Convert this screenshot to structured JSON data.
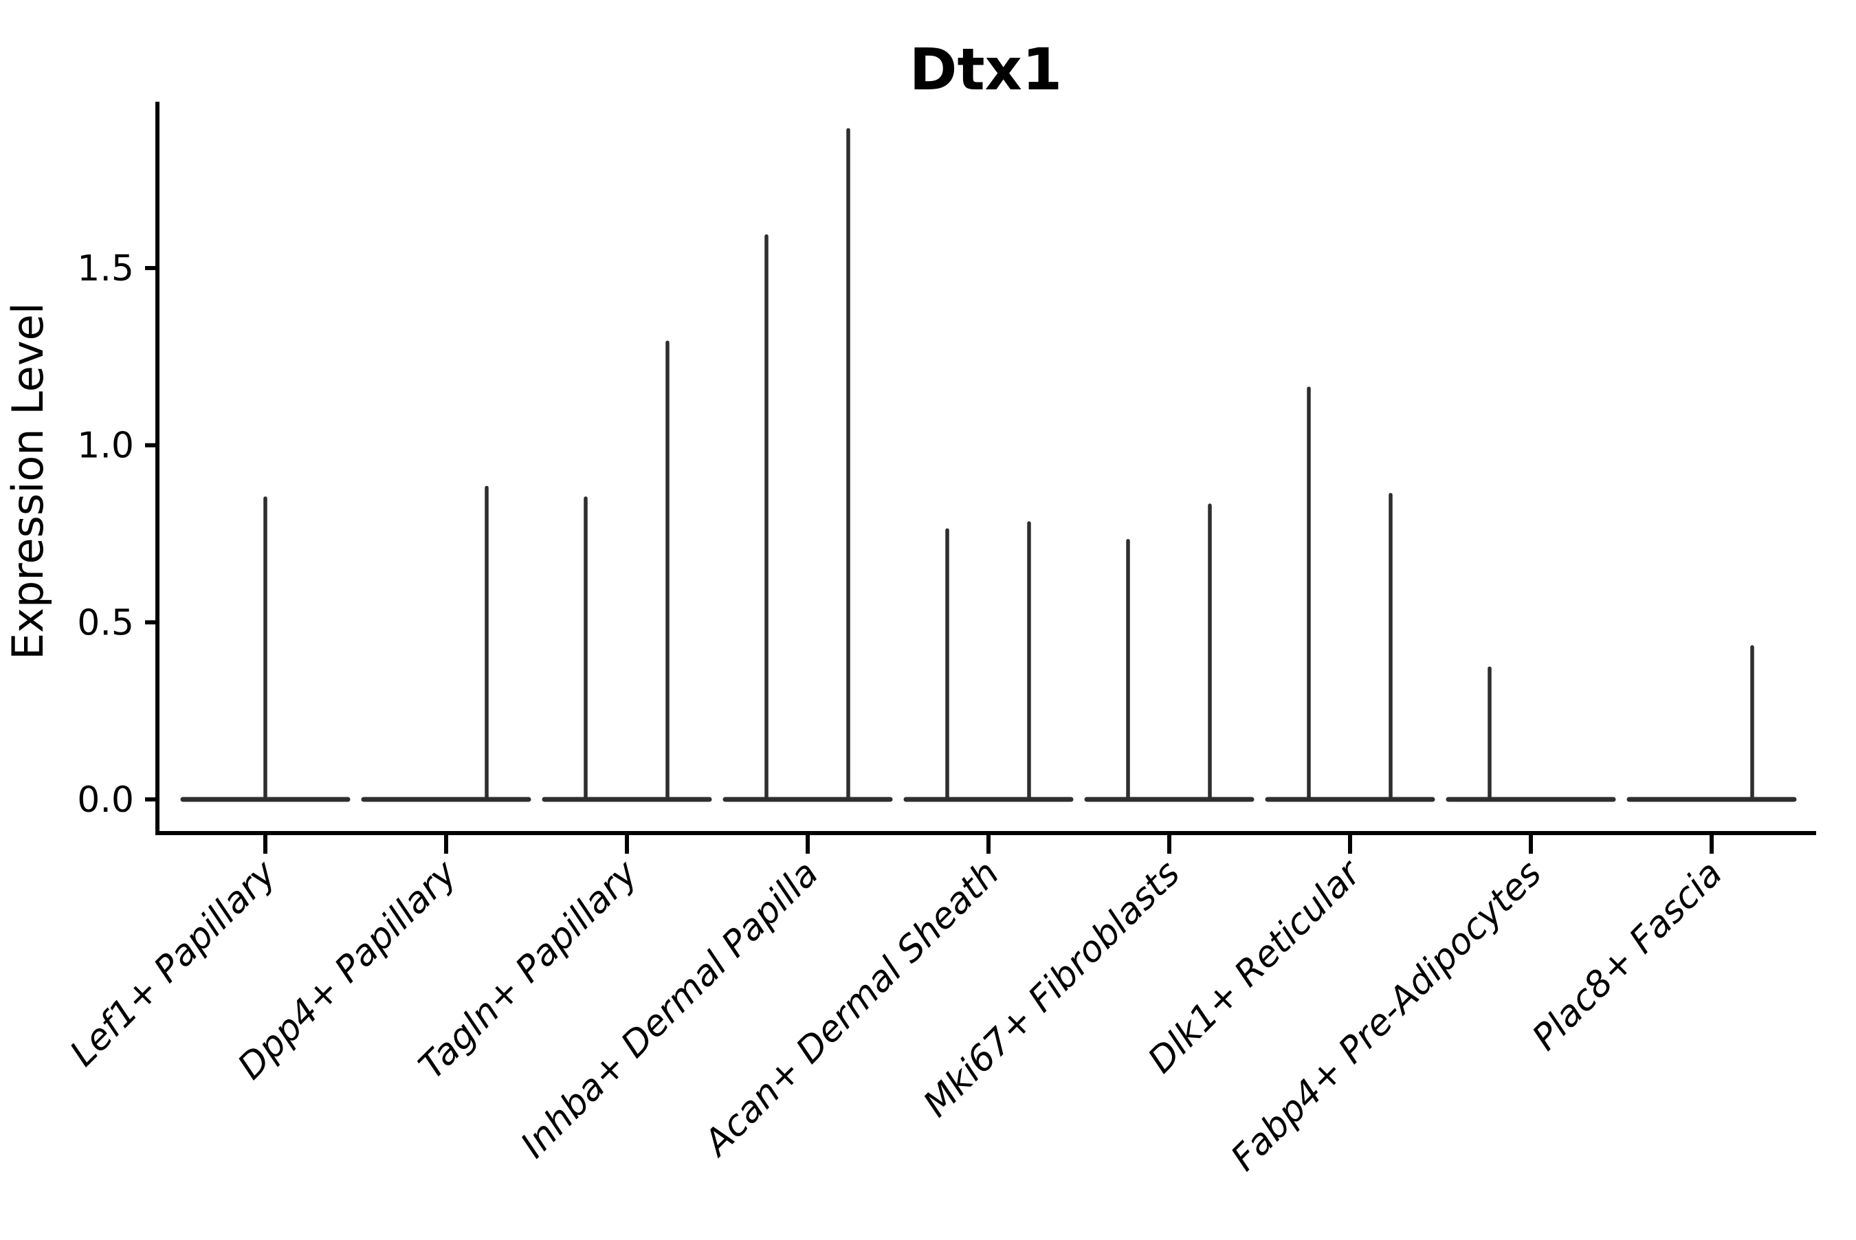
{
  "title": "Dtx1",
  "y_axis": {
    "label": "Expression Level",
    "tick_labels": [
      "0.0",
      "0.5",
      "1.0",
      "1.5"
    ]
  },
  "chart_data": {
    "type": "violin",
    "title": "Dtx1",
    "xlabel": "",
    "ylabel": "Expression Level",
    "ylim": [
      -0.1,
      1.97
    ],
    "yticks": [
      0.0,
      0.5,
      1.0,
      1.5
    ],
    "grid": false,
    "legend": "none",
    "background": "#ffffff",
    "axis_color": "#000000",
    "violin_color": "#2e2e2e",
    "categories": [
      "Lef1+ Papillary",
      "Dpp4+ Papillary",
      "Tagln+ Papillary",
      "Inhba+ Dermal Papilla",
      "Acan+ Dermal Sheath",
      "Mki67+ Fibroblasts",
      "Dlk1+ Reticular",
      "Fabp4+ Pre-Adipocytes",
      "Plac8+ Fascia"
    ],
    "note": "Each category shows a flat violin baseline at expression 0 with thin density spikes rising to the maximum expression value; spikes sit at the center, left sub-violin (-60px) or right sub-violin (+59px) of the category slot.",
    "violins": [
      {
        "category": "Lef1+ Papillary",
        "baseline": 0,
        "spikes": [
          {
            "pos": "center",
            "max": 0.85
          }
        ]
      },
      {
        "category": "Dpp4+ Papillary",
        "baseline": 0,
        "spikes": [
          {
            "pos": "right",
            "max": 0.88
          }
        ]
      },
      {
        "category": "Tagln+ Papillary",
        "baseline": 0,
        "spikes": [
          {
            "pos": "left",
            "max": 0.85
          },
          {
            "pos": "right",
            "max": 1.29
          }
        ]
      },
      {
        "category": "Inhba+ Dermal Papilla",
        "baseline": 0,
        "spikes": [
          {
            "pos": "left",
            "max": 1.59
          },
          {
            "pos": "right",
            "max": 1.89
          }
        ]
      },
      {
        "category": "Acan+ Dermal Sheath",
        "baseline": 0,
        "spikes": [
          {
            "pos": "left",
            "max": 0.76
          },
          {
            "pos": "right",
            "max": 0.78
          }
        ]
      },
      {
        "category": "Mki67+ Fibroblasts",
        "baseline": 0,
        "spikes": [
          {
            "pos": "left",
            "max": 0.73
          },
          {
            "pos": "right",
            "max": 0.83
          }
        ]
      },
      {
        "category": "Dlk1+ Reticular",
        "baseline": 0,
        "spikes": [
          {
            "pos": "left",
            "max": 1.16
          },
          {
            "pos": "right",
            "max": 0.86
          }
        ]
      },
      {
        "category": "Fabp4+ Pre-Adipocytes",
        "baseline": 0,
        "spikes": [
          {
            "pos": "left",
            "max": 0.37
          }
        ]
      },
      {
        "category": "Plac8+ Fascia",
        "baseline": 0,
        "spikes": [
          {
            "pos": "right",
            "max": 0.43
          }
        ]
      }
    ]
  }
}
